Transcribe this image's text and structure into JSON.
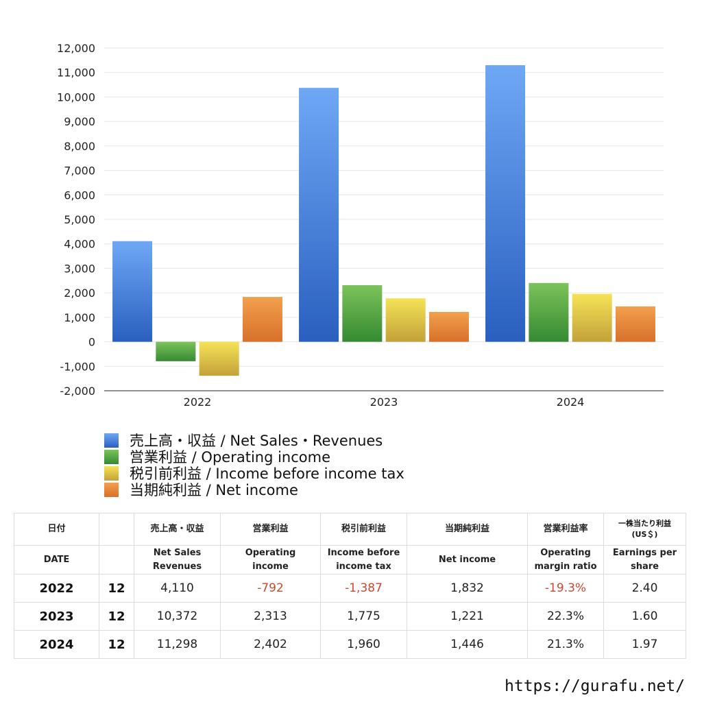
{
  "chart_data": {
    "type": "bar",
    "categories": [
      "2022",
      "2023",
      "2024"
    ],
    "ylim": [
      -2000,
      12000
    ],
    "yticks": [
      "12,000",
      "11,000",
      "10,000",
      "9,000",
      "8,000",
      "7,000",
      "6,000",
      "5,000",
      "4,000",
      "3,000",
      "2,000",
      "1,000",
      "0",
      "-1,000",
      "-2,000"
    ],
    "ytick_values": [
      12000,
      11000,
      10000,
      9000,
      8000,
      7000,
      6000,
      5000,
      4000,
      3000,
      2000,
      1000,
      0,
      -1000,
      -2000
    ],
    "series": [
      {
        "name": "売上高・収益 / Net Sales・Revenues",
        "values": [
          4110,
          10372,
          11298
        ],
        "color_top": "#6ea8f5",
        "color_bottom": "#2a5fbf"
      },
      {
        "name": "営業利益 / Operating income",
        "values": [
          -792,
          2313,
          2402
        ],
        "color_top": "#7cc35a",
        "color_bottom": "#358a32"
      },
      {
        "name": "税引前利益 / Income before income tax",
        "values": [
          -1387,
          1775,
          1960
        ],
        "color_top": "#f5e356",
        "color_bottom": "#c2a23a"
      },
      {
        "name": "当期純利益 / Net income",
        "values": [
          1832,
          1221,
          1446
        ],
        "color_top": "#f2a04e",
        "color_bottom": "#d7702a"
      }
    ]
  },
  "table": {
    "headers_jp": [
      "日付",
      "売上高・収益",
      "営業利益",
      "税引前利益",
      "当期純利益",
      "営業利益率",
      "一株当たり利益",
      "(US＄)"
    ],
    "headers_en": {
      "date": "DATE",
      "sales_1": "Net Sales",
      "sales_2": "Revenues",
      "op_1": "Operating",
      "op_2": "income",
      "pre_1": "Income before",
      "pre_2": "income tax",
      "net": "Net income",
      "margin_1": "Operating",
      "margin_2": "margin ratio",
      "eps_1": "Earnings per",
      "eps_2": "share"
    },
    "rows": [
      {
        "year": "2022",
        "month": "12",
        "sales": "4,110",
        "op": "-792",
        "pre": "-1,387",
        "net": "1,832",
        "margin": "-19.3%",
        "eps": "2.40"
      },
      {
        "year": "2023",
        "month": "12",
        "sales": "10,372",
        "op": "2,313",
        "pre": "1,775",
        "net": "1,221",
        "margin": "22.3%",
        "eps": "1.60"
      },
      {
        "year": "2024",
        "month": "12",
        "sales": "11,298",
        "op": "2,402",
        "pre": "1,960",
        "net": "1,446",
        "margin": "21.3%",
        "eps": "1.97"
      }
    ],
    "negative_color": "#d0452a"
  },
  "credit": "https://gurafu.net/"
}
